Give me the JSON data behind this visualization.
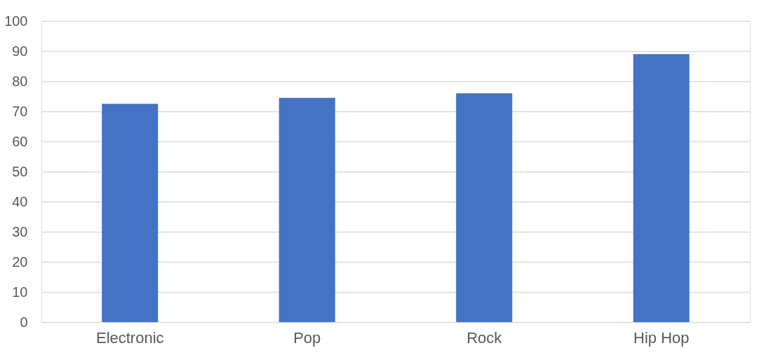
{
  "chart_data": {
    "type": "bar",
    "categories": [
      "Electronic",
      "Pop",
      "Rock",
      "Hip Hop"
    ],
    "values": [
      72.5,
      74.5,
      76,
      89
    ],
    "color": "#4472c4",
    "ylim": [
      0,
      100
    ],
    "yticks": [
      0,
      10,
      20,
      30,
      40,
      50,
      60,
      70,
      80,
      90,
      100
    ],
    "grid": "y"
  }
}
